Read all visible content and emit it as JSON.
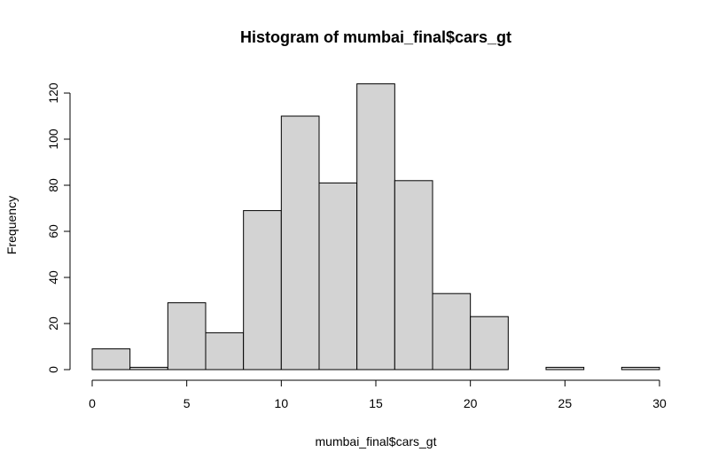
{
  "chart_data": {
    "type": "bar",
    "title": "Histogram of mumbai_final$cars_gt",
    "xlabel": "mumbai_final$cars_gt",
    "ylabel": "Frequency",
    "bins": [
      {
        "start": 0,
        "end": 2,
        "count": 9
      },
      {
        "start": 2,
        "end": 4,
        "count": 1
      },
      {
        "start": 4,
        "end": 6,
        "count": 29
      },
      {
        "start": 6,
        "end": 8,
        "count": 16
      },
      {
        "start": 8,
        "end": 10,
        "count": 69
      },
      {
        "start": 10,
        "end": 12,
        "count": 110
      },
      {
        "start": 12,
        "end": 14,
        "count": 81
      },
      {
        "start": 14,
        "end": 16,
        "count": 124
      },
      {
        "start": 16,
        "end": 18,
        "count": 82
      },
      {
        "start": 18,
        "end": 20,
        "count": 33
      },
      {
        "start": 20,
        "end": 22,
        "count": 23
      },
      {
        "start": 22,
        "end": 24,
        "count": 0
      },
      {
        "start": 24,
        "end": 26,
        "count": 1
      },
      {
        "start": 26,
        "end": 28,
        "count": 0
      },
      {
        "start": 28,
        "end": 30,
        "count": 1
      }
    ],
    "xlim": [
      0,
      30
    ],
    "ylim": [
      0,
      124
    ],
    "x_ticks": [
      0,
      5,
      10,
      15,
      20,
      25,
      30
    ],
    "y_ticks": [
      0,
      20,
      40,
      60,
      80,
      100,
      120
    ],
    "grid": false,
    "bar_color": "#d3d3d3",
    "edge_color": "#000000"
  }
}
